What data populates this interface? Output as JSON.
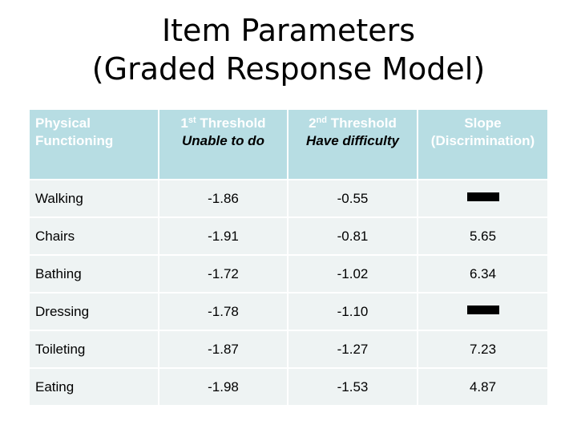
{
  "title": {
    "line1": "Item Parameters",
    "line2": "(Graded Response Model)"
  },
  "table": {
    "headers": {
      "col0": "Physical Functioning",
      "col1_num": "1",
      "col1_sup": "st",
      "col1_main": " Threshold",
      "col1_sub": "Unable to do",
      "col2_num": "2",
      "col2_sup": "nd",
      "col2_main": " Threshold",
      "col2_sub": "Have difficulty",
      "col3_main": "Slope",
      "col3_sub": "(Discrimination)"
    },
    "rows": [
      {
        "item": "Walking",
        "t1": "-1.86",
        "t2": "-0.55",
        "slope": ""
      },
      {
        "item": "Chairs",
        "t1": "-1.91",
        "t2": "-0.81",
        "slope": "5.65"
      },
      {
        "item": "Bathing",
        "t1": "-1.72",
        "t2": "-1.02",
        "slope": "6.34"
      },
      {
        "item": "Dressing",
        "t1": "-1.78",
        "t2": "-1.10",
        "slope": ""
      },
      {
        "item": "Toileting",
        "t1": "-1.87",
        "t2": "-1.27",
        "slope": "7.23"
      },
      {
        "item": "Eating",
        "t1": "-1.98",
        "t2": "-1.53",
        "slope": "4.87"
      }
    ],
    "colors": {
      "header_bg": "#b7dde3",
      "cell_bg": "#eef3f3"
    }
  }
}
